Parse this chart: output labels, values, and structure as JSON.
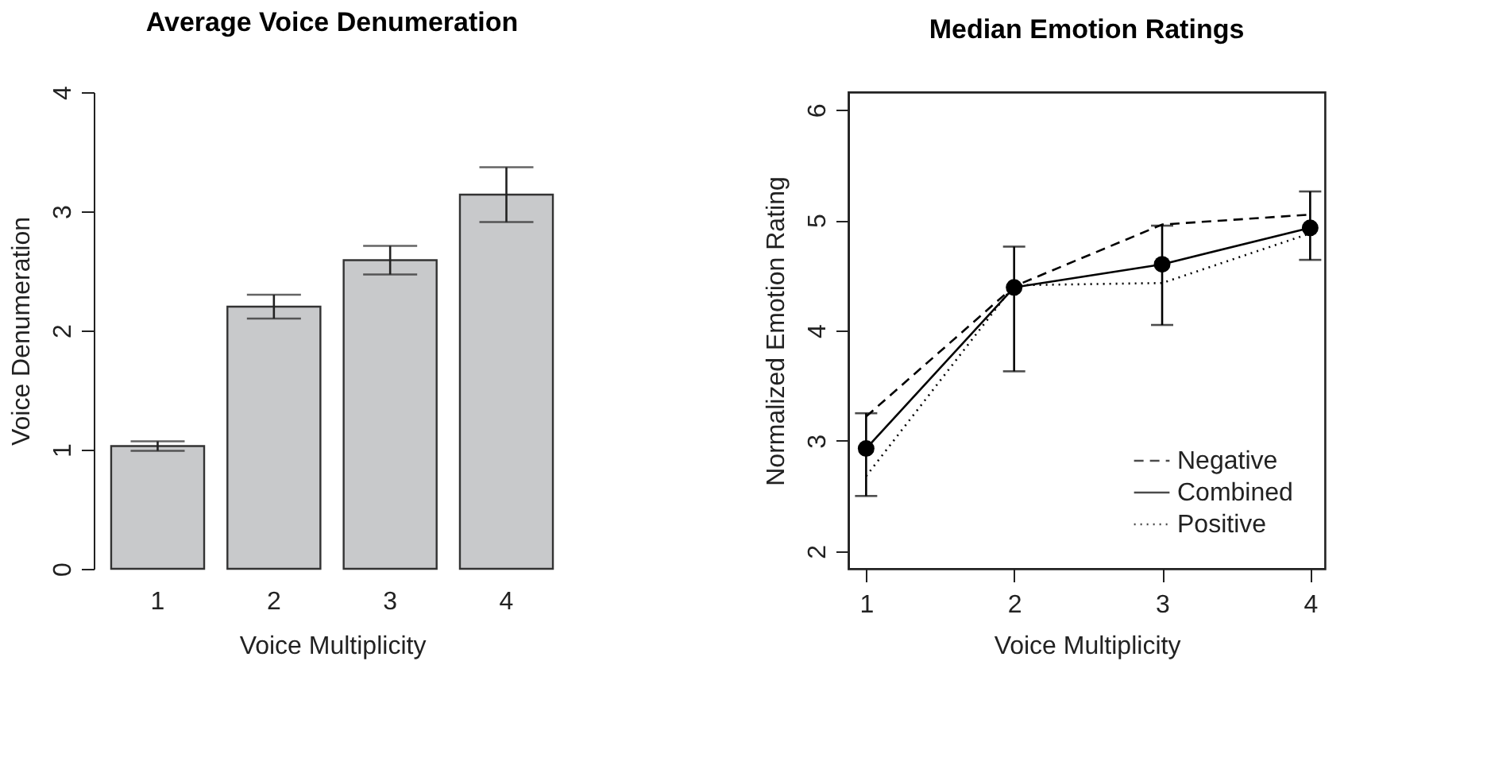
{
  "chart_data": [
    {
      "type": "bar",
      "title": "Average Voice Denumeration",
      "xlabel": "Voice Multiplicity",
      "ylabel": "Voice Denumeration",
      "categories": [
        "1",
        "2",
        "3",
        "4"
      ],
      "values": [
        1.03,
        2.2,
        2.59,
        3.14
      ],
      "errors": [
        0.04,
        0.1,
        0.12,
        0.23
      ],
      "color": "#c8c9cb",
      "ylim": [
        0,
        4
      ],
      "yticks": [
        0,
        1,
        2,
        3,
        4
      ],
      "grid": false
    },
    {
      "type": "line",
      "title": "Median Emotion Ratings",
      "xlabel": "Voice Multiplicity",
      "ylabel": "Normalized Emotion Rating",
      "x": [
        1,
        2,
        3,
        4
      ],
      "xlim": [
        0.88,
        4.1
      ],
      "xticks": [
        1,
        2,
        3,
        4
      ],
      "ylim": [
        1.84,
        6.16
      ],
      "yticks": [
        2,
        3,
        4,
        5,
        6
      ],
      "grid": false,
      "legend": "bottom right",
      "series": [
        {
          "name": "Negative",
          "color": "#000000",
          "line_style": "dashed",
          "marker": "none",
          "values": [
            3.22,
            4.4,
            4.96,
            5.05
          ]
        },
        {
          "name": "Combined",
          "color": "#000000",
          "line_style": "solid",
          "marker": "circle",
          "values": [
            2.93,
            4.39,
            4.6,
            4.93
          ],
          "errors": [
            [
              2.5,
              3.25
            ],
            [
              3.63,
              4.76
            ],
            [
              4.05,
              4.95
            ],
            [
              4.64,
              5.26
            ]
          ]
        },
        {
          "name": "Positive",
          "color": "#000000",
          "line_style": "dotted",
          "marker": "none",
          "values": [
            2.68,
            4.41,
            4.43,
            4.88
          ]
        }
      ]
    }
  ]
}
